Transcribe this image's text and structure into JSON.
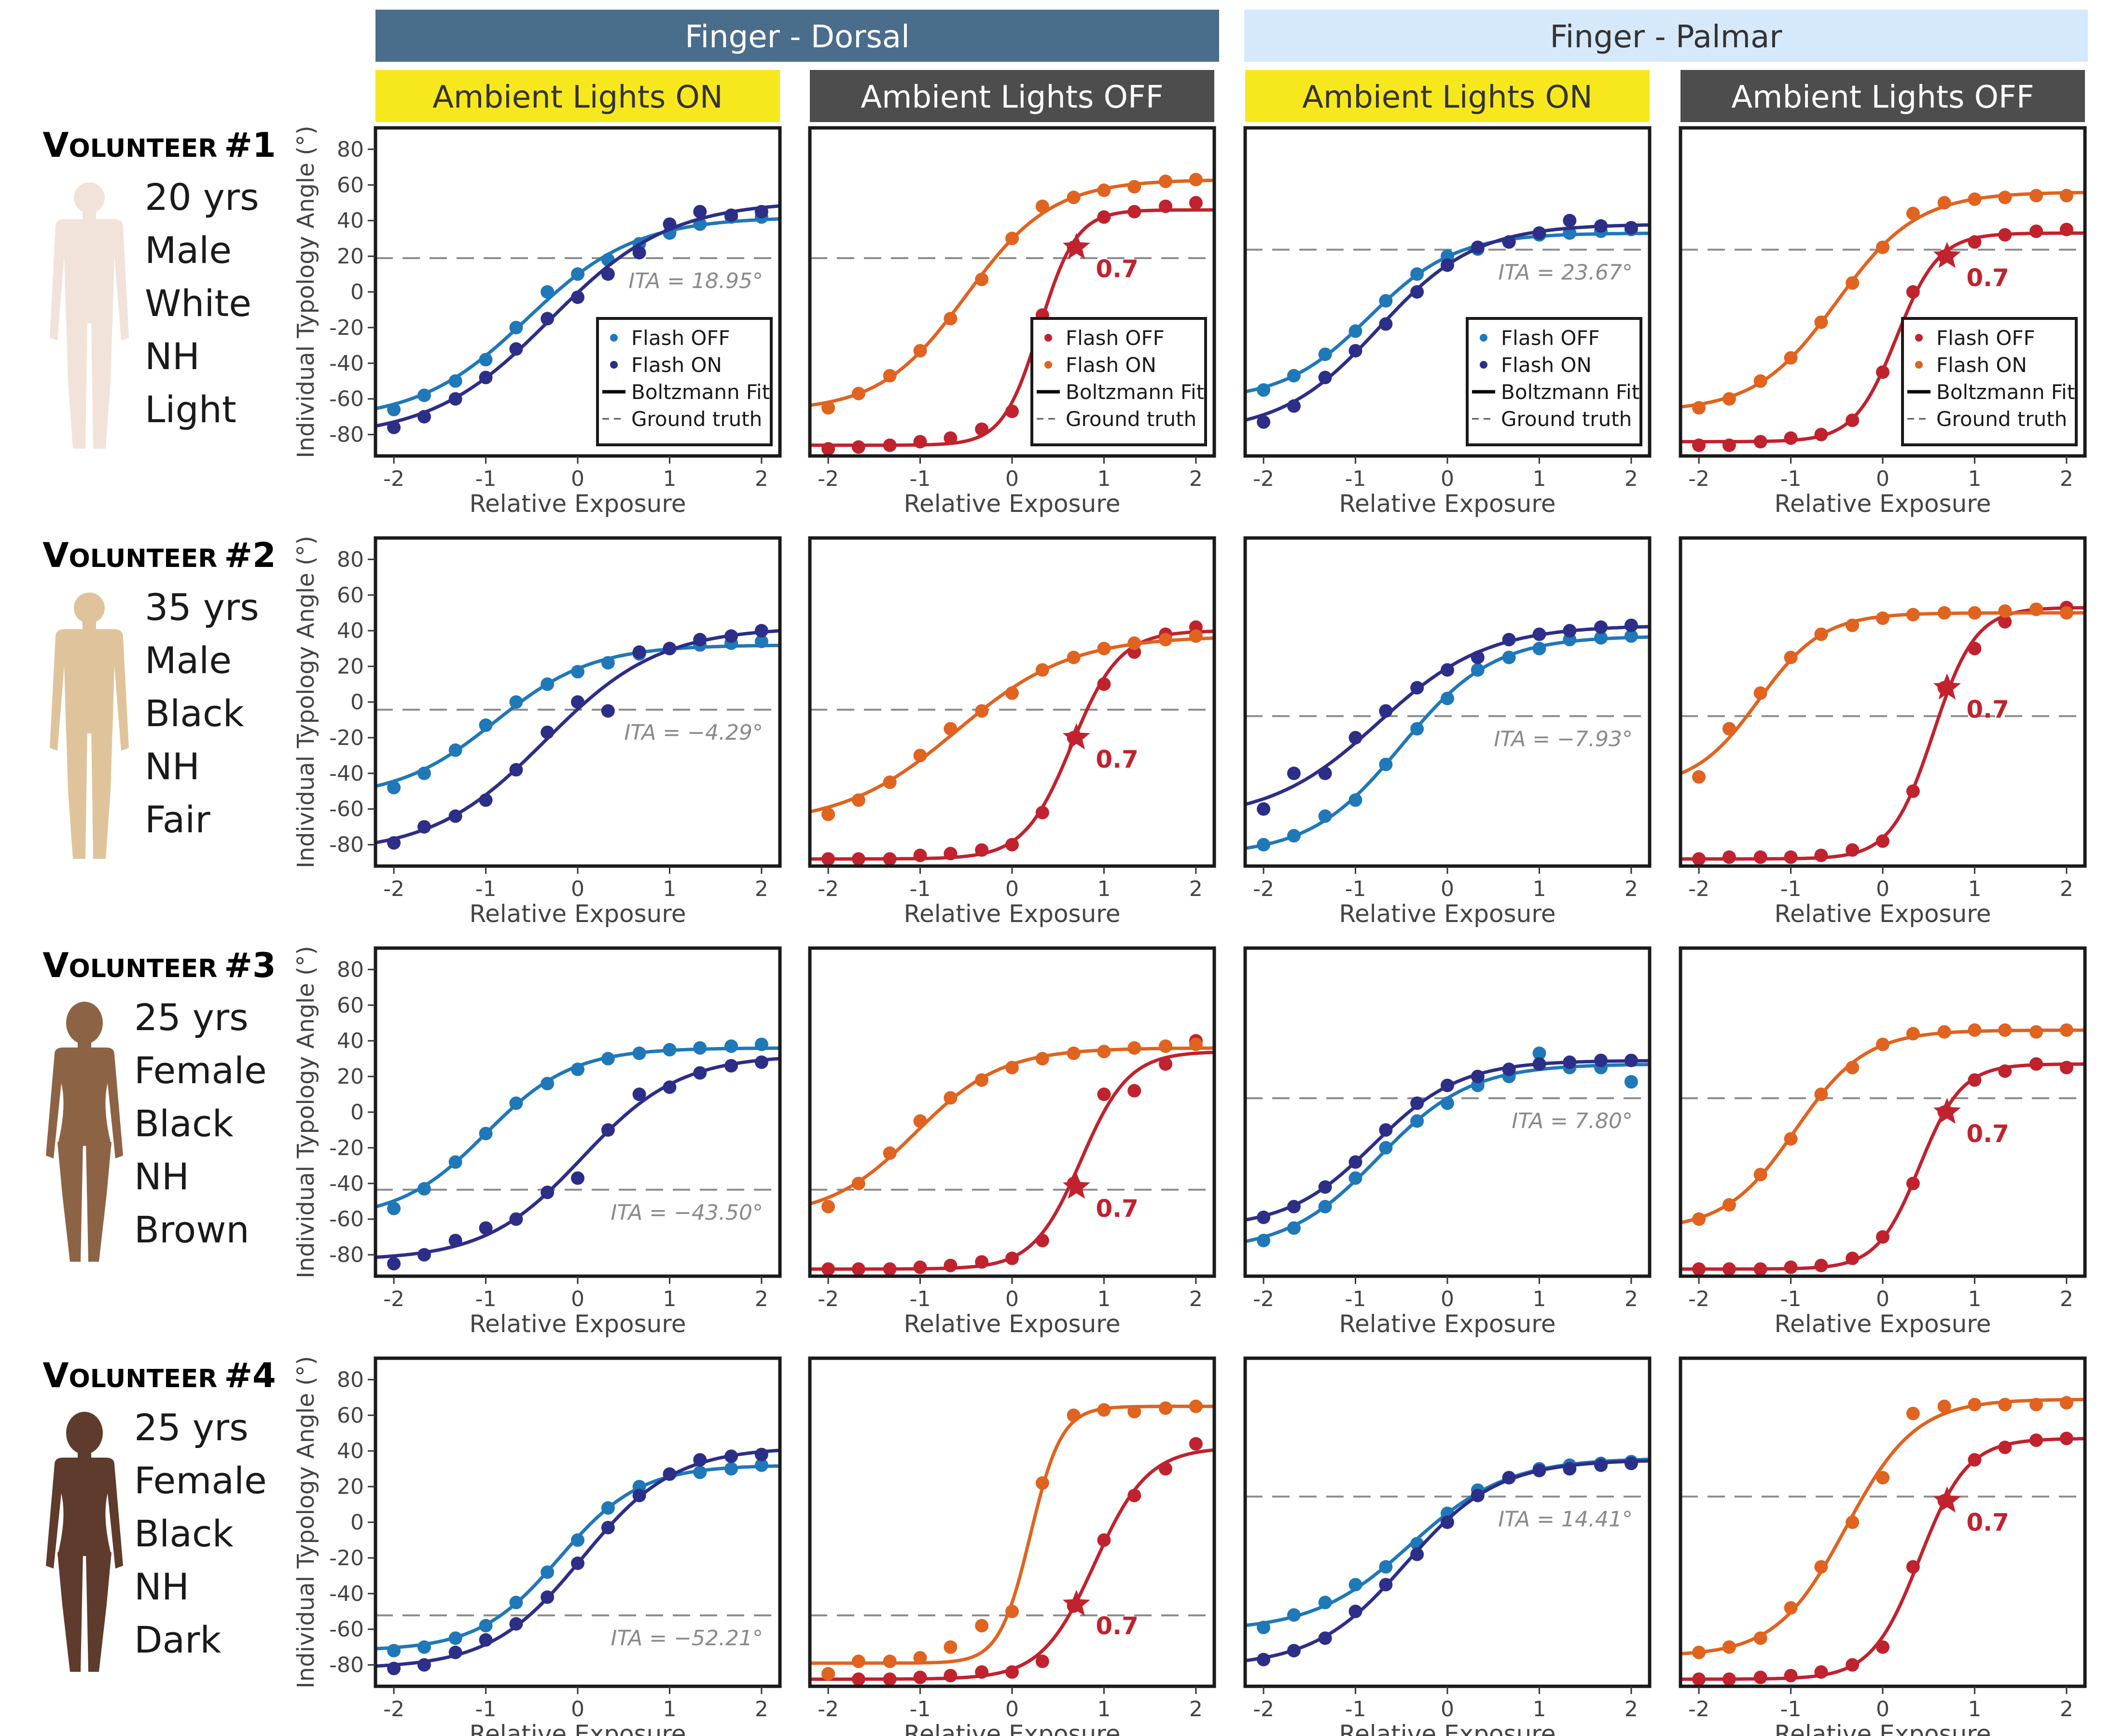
{
  "groups": [
    {
      "label": "Finger - Dorsal",
      "color": "#4a6d8c",
      "text_color": "#ffffff"
    },
    {
      "label": "Finger - Palmar",
      "color": "#d6e9fb",
      "text_color": "#333333"
    }
  ],
  "conditions": [
    {
      "label": "Ambient Lights ON",
      "color": "#f7e81e",
      "text_color": "#333333"
    },
    {
      "label": "Ambient Lights OFF",
      "color": "#4d4d4d",
      "text_color": "#ffffff"
    },
    {
      "label": "Ambient Lights ON",
      "color": "#f7e81e",
      "text_color": "#333333"
    },
    {
      "label": "Ambient Lights OFF",
      "color": "#4d4d4d",
      "text_color": "#ffffff"
    }
  ],
  "volunteers": [
    {
      "title_first": "V",
      "title_rest": "OLUNTEER",
      "title_num": "#1",
      "figure": "male",
      "skin": "#f1e3d9",
      "lines": [
        "20 yrs",
        "Male",
        "White",
        "NH",
        "Light"
      ]
    },
    {
      "title_first": "V",
      "title_rest": "OLUNTEER",
      "title_num": "#2",
      "figure": "male",
      "skin": "#dfc49b",
      "lines": [
        "35 yrs",
        "Male",
        "Black",
        "NH",
        "Fair"
      ]
    },
    {
      "title_first": "V",
      "title_rest": "OLUNTEER",
      "title_num": "#3",
      "figure": "female",
      "skin": "#8d6346",
      "lines": [
        "25 yrs",
        "Female",
        "Black",
        "NH",
        "Brown"
      ]
    },
    {
      "title_first": "V",
      "title_rest": "OLUNTEER",
      "title_num": "#4",
      "figure": "female",
      "skin": "#5e3b2c",
      "lines": [
        "25 yrs",
        "Female",
        "Black",
        "NH",
        "Dark"
      ]
    }
  ],
  "colors": {
    "on_flash_off": "#1f78b8",
    "on_flash_on": "#2d2e87",
    "off_flash_off": "#c0222e",
    "off_flash_on": "#e0631f",
    "ground_truth": "#8c8c8c"
  },
  "legends": {
    "on": [
      "Flash OFF",
      "Flash ON",
      "Boltzmann Fit",
      "Ground truth"
    ],
    "off": [
      "Flash OFF",
      "Flash ON",
      "Boltzmann Fit",
      "Ground truth"
    ]
  },
  "star_label": "0.7",
  "chart_data": {
    "type": "scatter",
    "xlabel": "Relative Exposure",
    "ylabel": "Individual Typology Angle (°)",
    "xlim": [
      -2.2,
      2.2
    ],
    "ylim": [
      -92,
      92
    ],
    "xticks": [
      -2,
      -1,
      0,
      1,
      2
    ],
    "yticks": [
      -80,
      -60,
      -40,
      -20,
      0,
      20,
      40,
      60,
      80
    ],
    "x": [
      -2,
      -1.67,
      -1.33,
      -1,
      -0.67,
      -0.33,
      0,
      0.33,
      0.67,
      1,
      1.33,
      1.67,
      2
    ],
    "panels": [
      [
        {
          "ground_truth": 18.95,
          "ita_label": "ITA = 18.95°",
          "legend": "on",
          "series": [
            {
              "name": "Flash OFF",
              "values": [
                -66,
                -58,
                -50,
                -38,
                -20,
                0,
                10,
                18,
                27,
                33,
                38,
                42,
                42
              ]
            },
            {
              "name": "Flash ON",
              "values": [
                -76,
                -70,
                -60,
                -48,
                -32,
                -15,
                -3,
                10,
                22,
                38,
                45,
                43,
                45
              ]
            }
          ]
        },
        {
          "ground_truth": 18.95,
          "legend": "off",
          "star": [
            0.7,
            25
          ],
          "series": [
            {
              "name": "Flash OFF",
              "values": [
                -88,
                -87,
                -86,
                -84,
                -82,
                -77,
                -67,
                -13,
                25,
                42,
                45,
                48,
                50
              ]
            },
            {
              "name": "Flash ON",
              "values": [
                -65,
                -57,
                -47,
                -33,
                -15,
                7,
                30,
                48,
                53,
                57,
                59,
                62,
                63
              ]
            }
          ]
        },
        {
          "ground_truth": 23.67,
          "ita_label": "ITA = 23.67°",
          "legend": "on",
          "series": [
            {
              "name": "Flash OFF",
              "values": [
                -55,
                -47,
                -35,
                -22,
                -5,
                10,
                20,
                24,
                28,
                32,
                33,
                34,
                35
              ]
            },
            {
              "name": "Flash ON",
              "values": [
                -73,
                -64,
                -48,
                -33,
                -18,
                0,
                15,
                25,
                28,
                33,
                40,
                37,
                36
              ]
            }
          ]
        },
        {
          "ground_truth": 23.67,
          "legend": "off",
          "star": [
            0.7,
            20
          ],
          "series": [
            {
              "name": "Flash OFF",
              "values": [
                -86,
                -86,
                -84,
                -82,
                -80,
                -72,
                -45,
                0,
                20,
                28,
                32,
                34,
                35
              ]
            },
            {
              "name": "Flash ON",
              "values": [
                -65,
                -60,
                -50,
                -37,
                -17,
                5,
                25,
                44,
                50,
                52,
                53,
                54,
                54
              ]
            }
          ]
        }
      ],
      [
        {
          "ground_truth": -4.29,
          "ita_label": "ITA = −4.29°",
          "legend": "none",
          "series": [
            {
              "name": "Flash OFF",
              "values": [
                -48,
                -40,
                -27,
                -13,
                0,
                10,
                17,
                22,
                27,
                30,
                32,
                33,
                34
              ]
            },
            {
              "name": "Flash ON",
              "values": [
                -79,
                -70,
                -64,
                -55,
                -38,
                -17,
                0,
                -5,
                28,
                30,
                35,
                37,
                40
              ]
            }
          ]
        },
        {
          "ground_truth": -4.29,
          "legend": "none",
          "star": [
            0.7,
            -20
          ],
          "series": [
            {
              "name": "Flash OFF",
              "values": [
                -88,
                -88,
                -88,
                -86,
                -85,
                -83,
                -80,
                -62,
                -20,
                10,
                28,
                38,
                42
              ]
            },
            {
              "name": "Flash ON",
              "values": [
                -63,
                -55,
                -45,
                -30,
                -15,
                -5,
                5,
                18,
                25,
                30,
                33,
                35,
                37
              ]
            }
          ]
        },
        {
          "ground_truth": -7.93,
          "ita_label": "ITA = −7.93°",
          "legend": "none",
          "series": [
            {
              "name": "Flash OFF",
              "values": [
                -80,
                -75,
                -64,
                -55,
                -35,
                -15,
                2,
                18,
                25,
                30,
                35,
                36,
                37
              ]
            },
            {
              "name": "Flash ON",
              "values": [
                -60,
                -40,
                -40,
                -20,
                -5,
                8,
                18,
                25,
                35,
                38,
                40,
                42,
                43
              ]
            }
          ]
        },
        {
          "ground_truth": -7.93,
          "legend": "none",
          "star": [
            0.7,
            8
          ],
          "series": [
            {
              "name": "Flash OFF",
              "values": [
                -88,
                -87,
                -87,
                -87,
                -86,
                -83,
                -78,
                -50,
                8,
                30,
                45,
                52,
                53
              ]
            },
            {
              "name": "Flash ON",
              "values": [
                -42,
                -15,
                5,
                25,
                38,
                43,
                47,
                49,
                50,
                50,
                51,
                52,
                50
              ]
            }
          ]
        }
      ],
      [
        {
          "ground_truth": -43.5,
          "ita_label": "ITA = −43.50°",
          "legend": "none",
          "series": [
            {
              "name": "Flash OFF",
              "values": [
                -54,
                -43,
                -28,
                -12,
                5,
                16,
                24,
                30,
                33,
                35,
                36,
                37,
                38
              ]
            },
            {
              "name": "Flash ON",
              "values": [
                -85,
                -80,
                -72,
                -65,
                -60,
                -45,
                -37,
                -10,
                10,
                14,
                22,
                26,
                28
              ]
            }
          ]
        },
        {
          "ground_truth": -43.5,
          "legend": "none",
          "star": [
            0.7,
            -42
          ],
          "series": [
            {
              "name": "Flash OFF",
              "values": [
                -88,
                -88,
                -88,
                -87,
                -86,
                -84,
                -82,
                -72,
                -40,
                10,
                12,
                27,
                40
              ]
            },
            {
              "name": "Flash ON",
              "values": [
                -53,
                -40,
                -23,
                -5,
                8,
                18,
                25,
                30,
                33,
                34,
                36,
                37,
                38
              ]
            }
          ]
        },
        {
          "ground_truth": 7.8,
          "ita_label": "ITA = 7.80°",
          "legend": "none",
          "series": [
            {
              "name": "Flash OFF",
              "values": [
                -72,
                -65,
                -53,
                -37,
                -20,
                -5,
                5,
                15,
                20,
                33,
                25,
                25,
                17
              ]
            },
            {
              "name": "Flash ON",
              "values": [
                -59,
                -53,
                -42,
                -28,
                -10,
                5,
                15,
                20,
                24,
                27,
                28,
                29,
                29
              ]
            }
          ]
        },
        {
          "ground_truth": 7.8,
          "legend": "none",
          "star": [
            0.7,
            0
          ],
          "series": [
            {
              "name": "Flash OFF",
              "values": [
                -88,
                -88,
                -88,
                -87,
                -86,
                -82,
                -70,
                -40,
                0,
                18,
                23,
                27,
                25
              ]
            },
            {
              "name": "Flash ON",
              "values": [
                -60,
                -52,
                -35,
                -15,
                10,
                25,
                38,
                44,
                45,
                46,
                46,
                45,
                46
              ]
            }
          ]
        }
      ],
      [
        {
          "ground_truth": -52.21,
          "ita_label": "ITA = −52.21°",
          "legend": "none",
          "series": [
            {
              "name": "Flash OFF",
              "values": [
                -72,
                -70,
                -65,
                -58,
                -45,
                -28,
                -10,
                8,
                20,
                27,
                28,
                30,
                32
              ]
            },
            {
              "name": "Flash ON",
              "values": [
                -82,
                -80,
                -73,
                -66,
                -57,
                -42,
                -23,
                -3,
                15,
                27,
                35,
                37,
                38
              ]
            }
          ]
        },
        {
          "ground_truth": -52.21,
          "legend": "none",
          "star": [
            0.7,
            -46
          ],
          "series": [
            {
              "name": "Flash OFF",
              "values": [
                -85,
                -88,
                -88,
                -87,
                -86,
                -84,
                -84,
                -78,
                -47,
                -10,
                15,
                30,
                44
              ]
            },
            {
              "name": "Flash ON",
              "values": [
                -85,
                -78,
                -78,
                -76,
                -70,
                -58,
                -50,
                22,
                60,
                63,
                62,
                64,
                65
              ]
            }
          ]
        },
        {
          "ground_truth": 14.41,
          "ita_label": "ITA = 14.41°",
          "legend": "none",
          "series": [
            {
              "name": "Flash OFF",
              "values": [
                -59,
                -52,
                -45,
                -35,
                -25,
                -12,
                5,
                18,
                25,
                30,
                32,
                33,
                34
              ]
            },
            {
              "name": "Flash ON",
              "values": [
                -77,
                -72,
                -65,
                -50,
                -35,
                -18,
                0,
                15,
                25,
                29,
                30,
                32,
                33
              ]
            }
          ]
        },
        {
          "ground_truth": 14.41,
          "legend": "none",
          "star": [
            0.7,
            12
          ],
          "series": [
            {
              "name": "Flash OFF",
              "values": [
                -88,
                -88,
                -87,
                -86,
                -84,
                -80,
                -70,
                -25,
                12,
                35,
                42,
                46,
                47
              ]
            },
            {
              "name": "Flash ON",
              "values": [
                -73,
                -70,
                -65,
                -48,
                -25,
                0,
                25,
                61,
                65,
                66,
                66,
                66,
                67
              ]
            }
          ]
        }
      ]
    ]
  }
}
